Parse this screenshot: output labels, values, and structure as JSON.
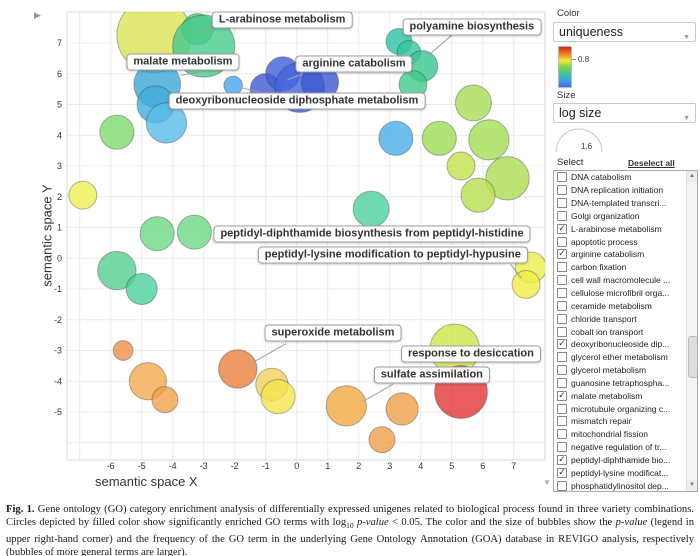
{
  "chart_data": {
    "type": "scatter",
    "title": "",
    "xlabel": "semantic space X",
    "ylabel": "semantic space Y",
    "xlim": [
      -7.4,
      8.0
    ],
    "ylim": [
      -6.5,
      8.1
    ],
    "grid": true,
    "x_ticks": [
      -6,
      -5,
      -4,
      -3,
      -2,
      -1,
      0,
      1,
      2,
      3,
      4,
      5,
      6,
      7
    ],
    "y_ticks": [
      7,
      6,
      5,
      4,
      3,
      2,
      1,
      0,
      -1,
      -2,
      -3,
      -4,
      -5
    ],
    "bubbles": [
      {
        "x": -4.6,
        "y": 7.25,
        "r": 1.2,
        "color": "#d9e455"
      },
      {
        "x": -3.2,
        "y": 7.45,
        "r": 0.5,
        "color": "#52cb70"
      },
      {
        "x": -3.0,
        "y": 6.9,
        "r": 1.0,
        "color": "#48c98c"
      },
      {
        "x": -5.8,
        "y": 4.1,
        "r": 0.55,
        "color": "#7fd96d"
      },
      {
        "x": -4.5,
        "y": 5.65,
        "r": 0.75,
        "color": "#3ba6d8"
      },
      {
        "x": -4.55,
        "y": 5.0,
        "r": 0.6,
        "color": "#45abdc"
      },
      {
        "x": -4.2,
        "y": 4.4,
        "r": 0.65,
        "color": "#58bce8"
      },
      {
        "x": -2.05,
        "y": 5.62,
        "r": 0.3,
        "color": "#47a5f2"
      },
      {
        "x": -1.0,
        "y": 5.5,
        "r": 0.5,
        "color": "#3c5ad2"
      },
      {
        "x": -0.45,
        "y": 6.0,
        "r": 0.55,
        "color": "#3f5ed9"
      },
      {
        "x": 0.1,
        "y": 5.55,
        "r": 0.8,
        "color": "#4365de"
      },
      {
        "x": 0.75,
        "y": 5.72,
        "r": 0.6,
        "color": "#3b57d0"
      },
      {
        "x": 3.3,
        "y": 7.05,
        "r": 0.42,
        "color": "#2dbfa5"
      },
      {
        "x": 3.62,
        "y": 6.7,
        "r": 0.38,
        "color": "#33c49d"
      },
      {
        "x": 4.05,
        "y": 6.25,
        "r": 0.5,
        "color": "#3ac68f"
      },
      {
        "x": 3.75,
        "y": 5.65,
        "r": 0.45,
        "color": "#42cb88"
      },
      {
        "x": 5.7,
        "y": 5.05,
        "r": 0.58,
        "color": "#a8dc52"
      },
      {
        "x": 4.6,
        "y": 3.9,
        "r": 0.55,
        "color": "#9fdc55"
      },
      {
        "x": 6.2,
        "y": 3.85,
        "r": 0.65,
        "color": "#a4de52"
      },
      {
        "x": 5.3,
        "y": 3.0,
        "r": 0.45,
        "color": "#c3e24e"
      },
      {
        "x": 6.8,
        "y": 2.6,
        "r": 0.7,
        "color": "#abdc50"
      },
      {
        "x": 5.85,
        "y": 2.05,
        "r": 0.55,
        "color": "#b9e04e"
      },
      {
        "x": 3.2,
        "y": 3.9,
        "r": 0.55,
        "color": "#4aaee8"
      },
      {
        "x": 7.55,
        "y": -0.3,
        "r": 0.5,
        "color": "#eded4d"
      },
      {
        "x": 7.4,
        "y": -0.85,
        "r": 0.45,
        "color": "#f0ee44"
      },
      {
        "x": -6.9,
        "y": 2.05,
        "r": 0.45,
        "color": "#eef052"
      },
      {
        "x": -4.5,
        "y": 0.8,
        "r": 0.55,
        "color": "#6fd884"
      },
      {
        "x": -3.3,
        "y": 0.85,
        "r": 0.55,
        "color": "#6fd884"
      },
      {
        "x": 2.4,
        "y": 1.6,
        "r": 0.58,
        "color": "#4ecf9b"
      },
      {
        "x": -5.8,
        "y": -0.4,
        "r": 0.62,
        "color": "#54cf8e"
      },
      {
        "x": -5.0,
        "y": -1.0,
        "r": 0.5,
        "color": "#4bcf9c"
      },
      {
        "x": -5.6,
        "y": -3.0,
        "r": 0.32,
        "color": "#ef9049"
      },
      {
        "x": -4.8,
        "y": -4.0,
        "r": 0.6,
        "color": "#f2aa4c"
      },
      {
        "x": -4.25,
        "y": -4.6,
        "r": 0.42,
        "color": "#f0a14a"
      },
      {
        "x": -1.9,
        "y": -3.6,
        "r": 0.62,
        "color": "#e8813c"
      },
      {
        "x": -0.8,
        "y": -4.1,
        "r": 0.52,
        "color": "#f2cf5e"
      },
      {
        "x": -0.6,
        "y": -4.5,
        "r": 0.55,
        "color": "#f5e44e"
      },
      {
        "x": 1.6,
        "y": -4.8,
        "r": 0.65,
        "color": "#f2a93e"
      },
      {
        "x": 3.4,
        "y": -4.9,
        "r": 0.52,
        "color": "#f0a04a"
      },
      {
        "x": 2.75,
        "y": -5.9,
        "r": 0.42,
        "color": "#f0a04a"
      },
      {
        "x": 5.1,
        "y": -2.95,
        "r": 0.8,
        "color": "#cbe64a"
      },
      {
        "x": 5.3,
        "y": -4.35,
        "r": 0.85,
        "color": "#e23434"
      }
    ],
    "callouts": [
      {
        "text": "L-arabinose metabolism",
        "x": -0.47,
        "y": 7.75,
        "line": [
          -2.6,
          7.45,
          -2.95,
          7.4
        ]
      },
      {
        "text": "polyamine biosynthesis",
        "x": 5.65,
        "y": 7.52,
        "line": [
          5.0,
          7.25,
          4.25,
          6.6
        ]
      },
      {
        "text": "malate metabolism",
        "x": -3.67,
        "y": 6.38,
        "line": [
          -3.15,
          6.05,
          -3.75,
          5.95
        ]
      },
      {
        "text": "arginine catabolism",
        "x": 1.85,
        "y": 6.32,
        "line": [
          0.2,
          6.0,
          -0.3,
          5.8
        ]
      },
      {
        "text": "deoxyribonucleoside diphosphate metabolism",
        "x": 0.01,
        "y": 5.11,
        "line": [
          -1.1,
          5.38,
          -1.8,
          5.55
        ]
      },
      {
        "text": "peptidyl-diphthamide biosynthesis from peptidyl-histidine",
        "x": 2.43,
        "y": 0.79,
        "line": null
      },
      {
        "text": "peptidyl-lysine modification to peptidyl-hypusine",
        "x": 3.1,
        "y": 0.11,
        "line": [
          6.9,
          -0.2,
          7.25,
          -0.65
        ]
      },
      {
        "text": "superoxide metabolism",
        "x": 1.17,
        "y": -2.43,
        "line": [
          -0.35,
          -2.78,
          -1.35,
          -3.35
        ]
      },
      {
        "text": "response to desiccation",
        "x": 5.62,
        "y": -3.11,
        "line": null
      },
      {
        "text": "sulfate assimilation",
        "x": 4.36,
        "y": -3.8,
        "line": [
          3.1,
          -4.1,
          2.15,
          -4.65
        ]
      }
    ]
  },
  "legend": {
    "color_label": "Color",
    "color_value": "uniqueness",
    "colorbar_tick": "0.8",
    "colorbar_stops": [
      "#c9281e",
      "#ef7722",
      "#f0e83c",
      "#7ed24c",
      "#3cc795",
      "#3da0ea",
      "#3f68df"
    ],
    "size_label": "Size",
    "size_value": "log size",
    "size_tick": "1.6"
  },
  "select_panel": {
    "title": "Select",
    "deselect_all": "Deselect all",
    "items": [
      {
        "label": "DNA catabolism",
        "checked": false
      },
      {
        "label": "DNA replication initiation",
        "checked": false
      },
      {
        "label": "DNA-templated transcri...",
        "checked": false
      },
      {
        "label": "Golgi organization",
        "checked": false
      },
      {
        "label": "L-arabinose metabolism",
        "checked": true
      },
      {
        "label": "apoptotic process",
        "checked": false
      },
      {
        "label": "arginine catabolism",
        "checked": true
      },
      {
        "label": "carbon fixation",
        "checked": false
      },
      {
        "label": "cell wall macromolecule ...",
        "checked": false
      },
      {
        "label": "cellulose microfibril orga...",
        "checked": false
      },
      {
        "label": "ceramide metabolism",
        "checked": false
      },
      {
        "label": "chloride transport",
        "checked": false
      },
      {
        "label": "cobalt ion transport",
        "checked": false
      },
      {
        "label": "deoxyribonucleoside dip...",
        "checked": true
      },
      {
        "label": "glycerol ether metabolism",
        "checked": false
      },
      {
        "label": "glycerol metabolism",
        "checked": false
      },
      {
        "label": "guanosine tetraphospha...",
        "checked": false
      },
      {
        "label": "malate metabolism",
        "checked": true
      },
      {
        "label": "microtubule organizing c...",
        "checked": false
      },
      {
        "label": "mismatch repair",
        "checked": false
      },
      {
        "label": "mitochondrial fission",
        "checked": false
      },
      {
        "label": "negative regulation of tr...",
        "checked": false
      },
      {
        "label": "peptidyl-diphthamide bio...",
        "checked": true
      },
      {
        "label": "peptidyl-lysine modificat...",
        "checked": true
      },
      {
        "label": "phosphatidylinositol dep...",
        "checked": false
      }
    ]
  },
  "caption": {
    "segments": [
      {
        "t": "Fig. 1.",
        "b": true
      },
      {
        "t": " Gene ontology (GO) category enrichment analysis of differentially expressed unigenes related to biological process found in three variety combinations. Circles depicted by filled color show significantly enriched GO terms with log"
      },
      {
        "t": "10",
        "sub": true
      },
      {
        "t": " "
      },
      {
        "t": "p-value",
        "i": true
      },
      {
        "t": " < 0.05. The color and the size of bubbles show the "
      },
      {
        "t": "p-value",
        "i": true
      },
      {
        "t": " (legend in upper right-hand corner) and the frequency of the GO term in the underlying Gene Ontology Annotation (GOA) database in REVIGO analysis, respectively (bubbles of more general terms are larger)."
      }
    ]
  }
}
